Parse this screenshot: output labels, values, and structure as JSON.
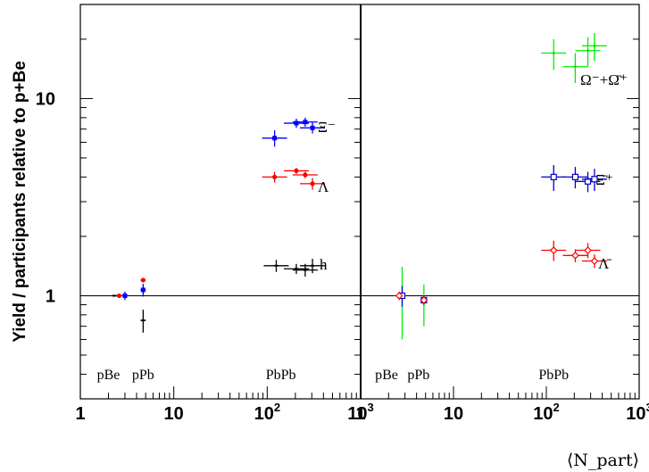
{
  "chart_data": {
    "type": "scatter",
    "ylabel": "Yield / participants relative to p+Be",
    "xlabel": "⟨N_part⟩",
    "yscale": "log",
    "xscale": "log",
    "ylim": [
      0.3,
      30
    ],
    "hline": 1,
    "panels": [
      {
        "name": "left",
        "xlim": [
          1,
          1000
        ],
        "ticks": [
          {
            "base": "1",
            "exp": ""
          },
          {
            "base": "10",
            "exp": ""
          },
          {
            "base": "10",
            "exp": "2"
          },
          {
            "base": "10",
            "exp": "3"
          }
        ],
        "collision_labels": [
          "pBe",
          "pPb",
          "PbPb"
        ],
        "series": [
          {
            "name": "Ξ⁻",
            "color": "#0000ff",
            "points": [
              [
                3,
                1.0,
                0.05
              ],
              [
                4.7,
                1.07,
                0.08
              ],
              [
                120,
                6.3,
                0.6
              ],
              [
                205,
                7.5,
                0.4
              ],
              [
                255,
                7.6,
                0.4
              ],
              [
                305,
                7.1,
                0.45
              ]
            ]
          },
          {
            "name": "Λ",
            "color": "#ff0000",
            "points": [
              [
                2.6,
                1.0,
                0.02
              ],
              [
                4.7,
                1.2,
                0.03
              ],
              [
                120,
                4.0,
                0.25
              ],
              [
                205,
                4.3,
                0.15
              ],
              [
                255,
                4.1,
                0.15
              ],
              [
                305,
                3.7,
                0.25
              ]
            ]
          },
          {
            "name": "h",
            "color": "#000000",
            "points": [
              [
                2.3,
                1.0,
                0.01
              ],
              [
                4.7,
                0.75,
                0.1
              ],
              [
                125,
                1.42,
                0.1
              ],
              [
                205,
                1.37,
                0.08
              ],
              [
                255,
                1.35,
                0.1
              ],
              [
                305,
                1.42,
                0.12
              ]
            ]
          }
        ]
      },
      {
        "name": "right",
        "xlim": [
          1,
          1000
        ],
        "ticks": [
          {
            "base": "1",
            "exp": ""
          },
          {
            "base": "10",
            "exp": ""
          },
          {
            "base": "10",
            "exp": "2"
          },
          {
            "base": "10",
            "exp": "3"
          }
        ],
        "collision_labels": [
          "pBe",
          "pPb",
          "PbPb"
        ],
        "series": [
          {
            "name": "Ω⁻+Ω̄⁺",
            "color": "#00ee00",
            "points": [
              [
                2.8,
                1.0,
                0.4
              ],
              [
                4.8,
                0.92,
                0.22
              ],
              [
                120,
                17,
                3
              ],
              [
                205,
                14.5,
                2.5
              ],
              [
                280,
                17.5,
                3
              ],
              [
                330,
                18.5,
                3
              ]
            ]
          },
          {
            "name": "Ξ̄⁺",
            "color": "#0000cc",
            "points": [
              [
                2.8,
                1.0,
                0.12
              ],
              [
                4.8,
                0.95,
                0.05
              ],
              [
                120,
                4.0,
                0.6
              ],
              [
                205,
                4.0,
                0.5
              ],
              [
                280,
                3.8,
                0.45
              ],
              [
                330,
                3.9,
                0.5
              ]
            ]
          },
          {
            "name": "Λ̄",
            "color": "#ff0000",
            "points": [
              [
                2.6,
                1.0,
                0.05
              ],
              [
                4.8,
                0.95,
                0.04
              ],
              [
                120,
                1.7,
                0.2
              ],
              [
                205,
                1.6,
                0.12
              ],
              [
                280,
                1.7,
                0.15
              ],
              [
                330,
                1.5,
                0.12
              ]
            ]
          }
        ]
      }
    ]
  }
}
